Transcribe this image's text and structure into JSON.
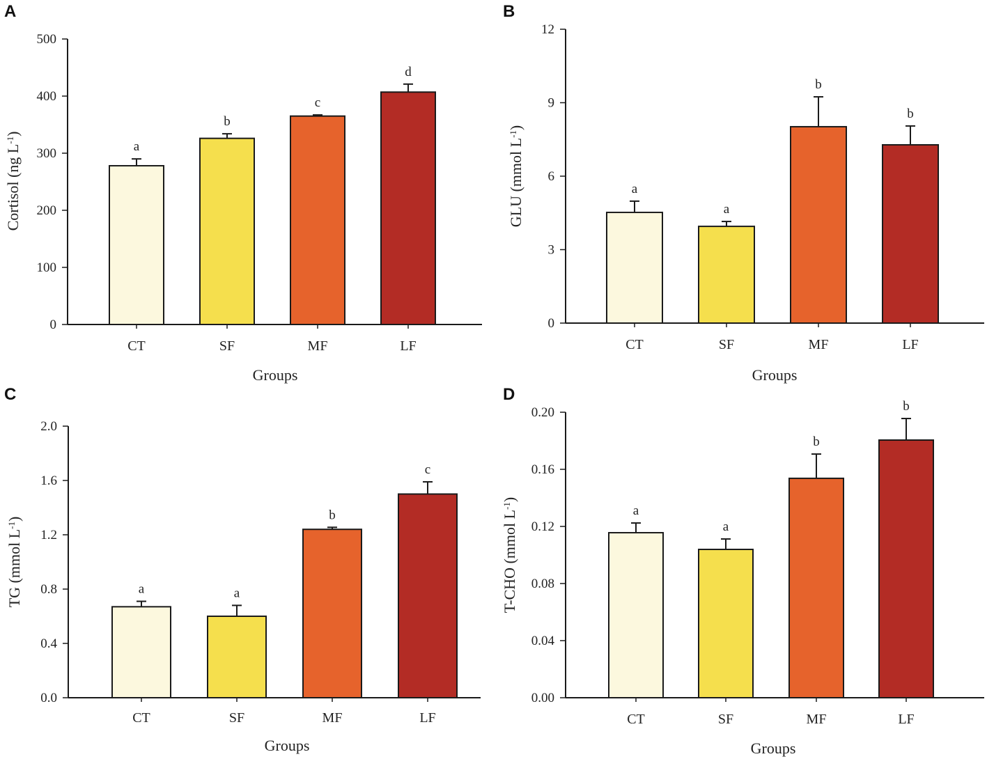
{
  "chart_data": [
    {
      "panel": "A",
      "type": "bar",
      "categories": [
        "CT",
        "SF",
        "MF",
        "LF"
      ],
      "values": [
        278,
        326,
        365,
        407
      ],
      "errors": [
        12,
        8,
        2,
        14
      ],
      "significance": [
        "a",
        "b",
        "c",
        "d"
      ],
      "xlabel": "Groups",
      "ylabel": {
        "text": "Cortisol (ng L",
        "sup": "-1",
        "end": ")"
      },
      "ylim": [
        0,
        500
      ],
      "yticks": [
        0,
        100,
        200,
        300,
        400,
        500
      ],
      "ytick_labels": [
        "0",
        "100",
        "200",
        "300",
        "400",
        "500"
      ]
    },
    {
      "panel": "B",
      "type": "bar",
      "categories": [
        "CT",
        "SF",
        "MF",
        "LF"
      ],
      "values": [
        4.52,
        3.95,
        8.02,
        7.28
      ],
      "errors": [
        0.46,
        0.2,
        1.22,
        0.77
      ],
      "significance": [
        "a",
        "a",
        "b",
        "b"
      ],
      "xlabel": "Groups",
      "ylabel": {
        "text": "GLU (mmol L",
        "sup": "-1",
        "end": ")"
      },
      "ylim": [
        0,
        12
      ],
      "yticks": [
        0,
        3,
        6,
        9,
        12
      ],
      "ytick_labels": [
        "0",
        "3",
        "6",
        "9",
        "12"
      ]
    },
    {
      "panel": "C",
      "type": "bar",
      "categories": [
        "CT",
        "SF",
        "MF",
        "LF"
      ],
      "values": [
        0.67,
        0.6,
        1.24,
        1.5
      ],
      "errors": [
        0.04,
        0.08,
        0.015,
        0.09
      ],
      "significance": [
        "a",
        "a",
        "b",
        "c"
      ],
      "xlabel": "Groups",
      "ylabel": {
        "text": "TG (mmol L",
        "sup": "-1",
        "end": ")"
      },
      "ylim": [
        0,
        2.0
      ],
      "yticks": [
        0,
        0.4,
        0.8,
        1.2,
        1.6,
        2.0
      ],
      "ytick_labels": [
        "0.0",
        "0.4",
        "0.8",
        "1.2",
        "1.6",
        "2.0"
      ]
    },
    {
      "panel": "D",
      "type": "bar",
      "categories": [
        "CT",
        "SF",
        "MF",
        "LF"
      ],
      "values": [
        0.1156,
        0.1039,
        0.1537,
        0.1805
      ],
      "errors": [
        0.0068,
        0.0073,
        0.017,
        0.0151
      ],
      "significance": [
        "a",
        "a",
        "b",
        "b"
      ],
      "xlabel": "Groups",
      "ylabel": {
        "text": "T-CHO (mmol L",
        "sup": "-1",
        "end": ")"
      },
      "ylim": [
        0,
        0.2
      ],
      "yticks": [
        0,
        0.04,
        0.08,
        0.12,
        0.16,
        0.2
      ],
      "ytick_labels": [
        "0.00",
        "0.04",
        "0.08",
        "0.12",
        "0.16",
        "0.20"
      ]
    }
  ],
  "colors": {
    "CT": "#FCF8DE",
    "SF": "#F5DF4D",
    "MF": "#E6632C",
    "LF": "#B32C25",
    "outline": "#1a1a1a"
  }
}
